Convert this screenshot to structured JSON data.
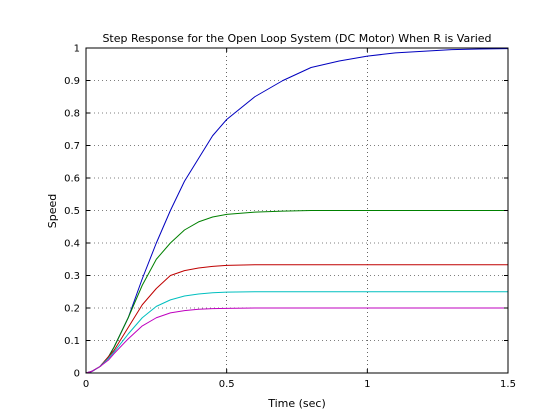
{
  "chart_data": {
    "type": "line",
    "title": "Step Response for the Open Loop System (DC Motor) When R is Varied",
    "xlabel": "Time (sec)",
    "ylabel": "Speed",
    "xlim": [
      0,
      1.5
    ],
    "ylim": [
      0,
      1
    ],
    "xticks": [
      0,
      0.5,
      1,
      1.5
    ],
    "xtick_labels": [
      "0",
      "0.5",
      "1",
      "1.5"
    ],
    "yticks": [
      0,
      0.1,
      0.2,
      0.3,
      0.4,
      0.5,
      0.6,
      0.7,
      0.8,
      0.9,
      1
    ],
    "ytick_labels": [
      "0",
      "0.1",
      "0.2",
      "0.3",
      "0.4",
      "0.5",
      "0.6",
      "0.7",
      "0.8",
      "0.9",
      "1"
    ],
    "grid": true,
    "series": [
      {
        "color": "#0000bf",
        "x": [
          0,
          0.02,
          0.05,
          0.08,
          0.1,
          0.15,
          0.2,
          0.25,
          0.3,
          0.35,
          0.4,
          0.45,
          0.5,
          0.6,
          0.7,
          0.8,
          0.9,
          1.0,
          1.1,
          1.2,
          1.3,
          1.4,
          1.5
        ],
        "values": [
          0,
          0.004,
          0.02,
          0.05,
          0.08,
          0.17,
          0.29,
          0.4,
          0.5,
          0.59,
          0.66,
          0.73,
          0.78,
          0.85,
          0.9,
          0.94,
          0.96,
          0.975,
          0.985,
          0.99,
          0.995,
          0.997,
          0.998
        ]
      },
      {
        "color": "#008000",
        "x": [
          0,
          0.02,
          0.05,
          0.08,
          0.1,
          0.15,
          0.2,
          0.25,
          0.3,
          0.35,
          0.4,
          0.45,
          0.5,
          0.6,
          0.7,
          0.8,
          0.9,
          1.0,
          1.2,
          1.5
        ],
        "values": [
          0,
          0.005,
          0.02,
          0.05,
          0.08,
          0.17,
          0.27,
          0.35,
          0.4,
          0.44,
          0.465,
          0.48,
          0.488,
          0.495,
          0.498,
          0.5,
          0.5,
          0.5,
          0.5,
          0.5
        ]
      },
      {
        "color": "#bf0000",
        "x": [
          0,
          0.02,
          0.05,
          0.08,
          0.1,
          0.15,
          0.2,
          0.25,
          0.3,
          0.35,
          0.4,
          0.45,
          0.5,
          0.6,
          0.7,
          0.8,
          1.0,
          1.5
        ],
        "values": [
          0,
          0.005,
          0.02,
          0.05,
          0.07,
          0.14,
          0.21,
          0.26,
          0.3,
          0.315,
          0.323,
          0.328,
          0.331,
          0.333,
          0.333,
          0.333,
          0.333,
          0.333
        ]
      },
      {
        "color": "#00bfbf",
        "x": [
          0,
          0.02,
          0.05,
          0.08,
          0.1,
          0.15,
          0.2,
          0.25,
          0.3,
          0.35,
          0.4,
          0.45,
          0.5,
          0.6,
          0.8,
          1.0,
          1.5
        ],
        "values": [
          0,
          0.005,
          0.02,
          0.045,
          0.065,
          0.12,
          0.17,
          0.205,
          0.225,
          0.237,
          0.243,
          0.247,
          0.249,
          0.25,
          0.25,
          0.25,
          0.25
        ]
      },
      {
        "color": "#bf00bf",
        "x": [
          0,
          0.02,
          0.05,
          0.08,
          0.1,
          0.15,
          0.2,
          0.25,
          0.3,
          0.35,
          0.4,
          0.45,
          0.5,
          0.6,
          0.8,
          1.0,
          1.5
        ],
        "values": [
          0,
          0.005,
          0.02,
          0.04,
          0.06,
          0.105,
          0.145,
          0.17,
          0.185,
          0.192,
          0.196,
          0.198,
          0.199,
          0.2,
          0.2,
          0.2,
          0.2
        ]
      }
    ]
  }
}
